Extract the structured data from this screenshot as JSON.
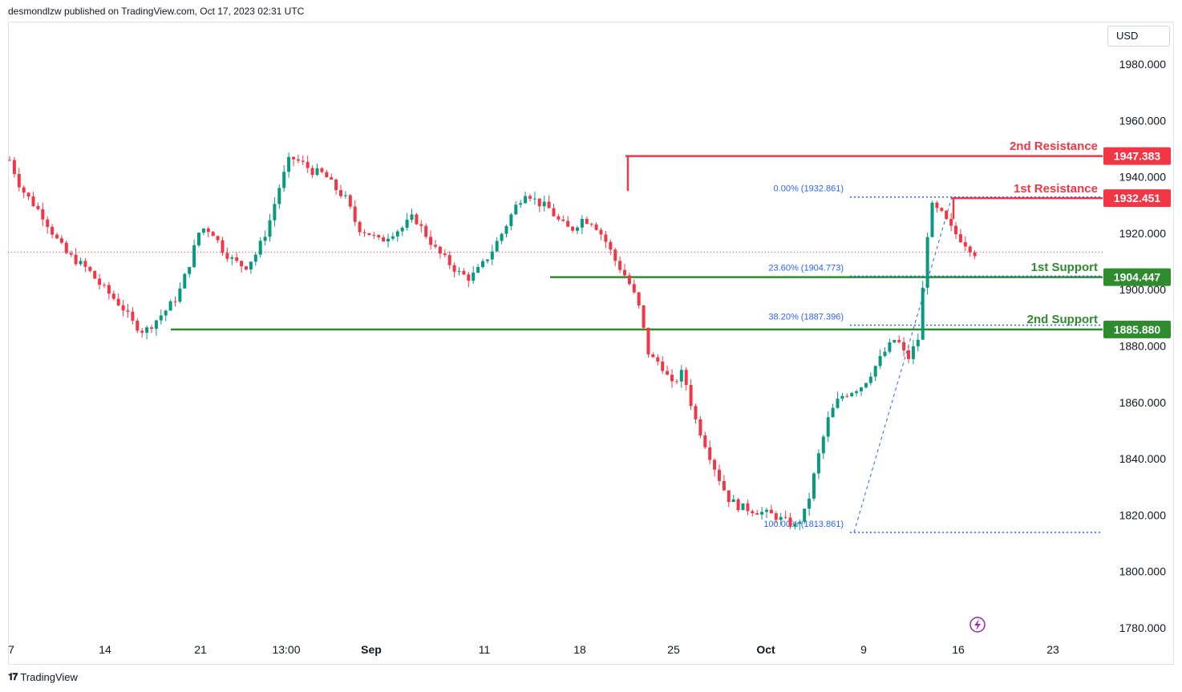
{
  "header": {
    "publisher_line": "desmondlzw published on TradingView.com, Oct 17, 2023 02:31 UTC"
  },
  "currency_button": {
    "label": "USD"
  },
  "footer": {
    "brand": "TradingView",
    "logo_icon": "tradingview-logo-icon"
  },
  "colors": {
    "up": "#089981",
    "down": "#f23645",
    "resistance": "#f23645",
    "support": "#2e8b2e",
    "fib": "#2962ff",
    "text": "#131722",
    "axis_text": "#131722"
  },
  "chart_data": {
    "type": "candlestick",
    "title": "",
    "ylabel": "USD",
    "ylim": [
      1774,
      1999
    ],
    "y_ticks": [
      1780,
      1800,
      1820,
      1840,
      1860,
      1880,
      1900,
      1920,
      1940,
      1960,
      1980
    ],
    "y_tick_labels": [
      "1780.000",
      "1800.000",
      "1820.000",
      "1840.000",
      "1860.000",
      "1880.000",
      "1900.000",
      "1920.000",
      "1940.000",
      "1960.000",
      "1980.000"
    ],
    "x_tick_labels": [
      {
        "label": "7",
        "bold": false
      },
      {
        "label": "14",
        "bold": false
      },
      {
        "label": "21",
        "bold": false
      },
      {
        "label": "13:00",
        "bold": false
      },
      {
        "label": "Sep",
        "bold": true
      },
      {
        "label": "11",
        "bold": false
      },
      {
        "label": "18",
        "bold": false
      },
      {
        "label": "25",
        "bold": false
      },
      {
        "label": "Oct",
        "bold": true
      },
      {
        "label": "9",
        "bold": false
      },
      {
        "label": "16",
        "bold": false
      },
      {
        "label": "23",
        "bold": false
      }
    ],
    "price_path": [
      1946,
      1936,
      1931,
      1926,
      1919,
      1913,
      1910,
      1907,
      1902,
      1898,
      1894,
      1888,
      1885,
      1889,
      1893,
      1898,
      1909,
      1922,
      1921,
      1914,
      1910,
      1908,
      1913,
      1922,
      1936,
      1947,
      1945,
      1942,
      1941,
      1936,
      1932,
      1922,
      1920,
      1917,
      1920,
      1922,
      1926,
      1920,
      1914,
      1910,
      1906,
      1904,
      1908,
      1914,
      1921,
      1929,
      1935,
      1931,
      1929,
      1924,
      1921,
      1925,
      1924,
      1918,
      1910,
      1904,
      1895,
      1876,
      1874,
      1866,
      1871,
      1855,
      1845,
      1835,
      1826,
      1823,
      1822,
      1821,
      1820,
      1818,
      1816,
      1822,
      1840,
      1855,
      1862,
      1864,
      1866,
      1872,
      1878,
      1883,
      1875,
      1883,
      1930,
      1927,
      1921,
      1917,
      1913
    ],
    "levels": [
      {
        "name": "2nd Resistance",
        "value": 1947.383,
        "label": "1947.383",
        "kind": "resistance"
      },
      {
        "name": "1st Resistance",
        "value": 1932.451,
        "label": "1932.451",
        "kind": "resistance"
      },
      {
        "name": "1st Support",
        "value": 1904.447,
        "label": "1904.447",
        "kind": "support"
      },
      {
        "name": "2nd Support",
        "value": 1885.88,
        "label": "1885.880",
        "kind": "support"
      }
    ],
    "fib_levels": [
      {
        "label": "0.00% (1932.861)",
        "value": 1932.861
      },
      {
        "label": "23.60% (1904.773)",
        "value": 1904.773
      },
      {
        "label": "38.20% (1887.396)",
        "value": 1887.396
      },
      {
        "label": "100.00% (1813.861)",
        "value": 1813.861
      }
    ],
    "last_price": 1913.3,
    "grid": false,
    "legend": "none"
  }
}
